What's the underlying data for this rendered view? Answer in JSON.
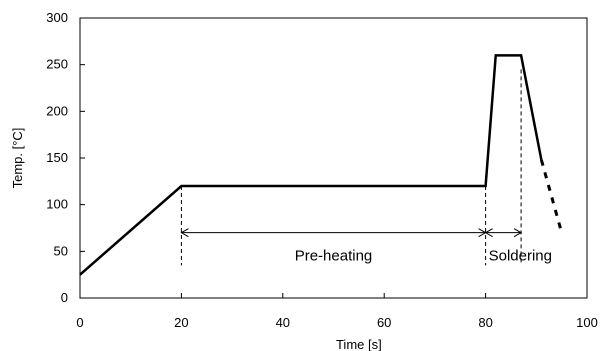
{
  "chart_data": {
    "type": "line",
    "title": "",
    "xlabel": "Time [s]",
    "ylabel": "Temp. [°C]",
    "xlim": [
      0,
      100
    ],
    "ylim": [
      0,
      300
    ],
    "x_ticks": [
      0,
      20,
      40,
      60,
      80,
      100
    ],
    "y_ticks": [
      0,
      50,
      100,
      150,
      200,
      250,
      300
    ],
    "grid": false,
    "series": [
      {
        "style": "solid",
        "x": [
          0,
          20,
          80,
          82,
          87,
          91
        ],
        "y": [
          25,
          120,
          120,
          260,
          260,
          148
        ]
      },
      {
        "style": "dotted",
        "x": [
          91,
          95
        ],
        "y": [
          148,
          70
        ]
      }
    ],
    "annotations": [
      {
        "label": "Pre-heating",
        "x_start": 20,
        "x_end": 80,
        "y": 70
      },
      {
        "label": "Soldering",
        "x_start": 80,
        "x_end": 87,
        "y": 70
      }
    ],
    "markers": [
      {
        "x": 20,
        "y_top": 120,
        "y_bottom": 35
      },
      {
        "x": 80,
        "y_top": 120,
        "y_bottom": 35
      },
      {
        "x": 87,
        "y_top": 245,
        "y_bottom": 35
      }
    ]
  }
}
